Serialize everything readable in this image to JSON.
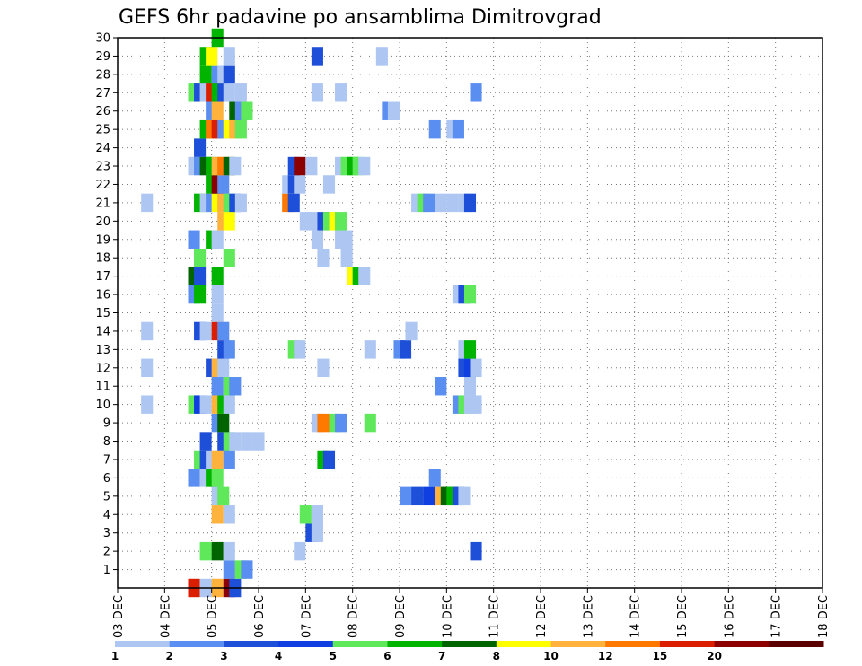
{
  "chart_data": {
    "type": "heatmap",
    "title": "GEFS 6hr padavine po ansamblima Dimitrovgrad",
    "x_tick_labels": [
      "03 DEC",
      "04 DEC",
      "05 DEC",
      "06 DEC",
      "07 DEC",
      "08 DEC",
      "09 DEC",
      "10 DEC",
      "11 DEC",
      "12 DEC",
      "13 DEC",
      "14 DEC",
      "15 DEC",
      "16 DEC",
      "17 DEC",
      "18 DEC"
    ],
    "y_tick_labels": [
      "1",
      "2",
      "3",
      "4",
      "5",
      "6",
      "7",
      "8",
      "9",
      "10",
      "11",
      "12",
      "13",
      "14",
      "15",
      "16",
      "17",
      "18",
      "19",
      "20",
      "21",
      "22",
      "23",
      "24",
      "25",
      "26",
      "27",
      "28",
      "29",
      "30"
    ],
    "xlim": [
      0,
      60
    ],
    "ylim": [
      0,
      30
    ],
    "grid": true,
    "legend": {
      "placement": "bottom",
      "labels": [
        "1",
        "2",
        "3",
        "4",
        "5",
        "6",
        "7",
        "8",
        "10",
        "12",
        "15",
        "20"
      ],
      "colors": [
        "#aec6f2",
        "#5a8ef0",
        "#1e4fd8",
        "#0f3fe0",
        "#5ee85a",
        "#00b400",
        "#006400",
        "#ffff00",
        "#ffb23c",
        "#ff7800",
        "#dc1e00",
        "#8c0000",
        "#5a0000"
      ]
    },
    "members": [
      {
        "member": 0,
        "cells": [
          [
            6,
            "c11"
          ],
          [
            7,
            "c1"
          ],
          [
            8,
            "c9"
          ],
          [
            9,
            "c12"
          ],
          [
            9.5,
            "c3"
          ]
        ]
      },
      {
        "member": 1,
        "cells": [
          [
            9,
            "c2"
          ],
          [
            10,
            "c5"
          ],
          [
            10.5,
            "c2"
          ]
        ]
      },
      {
        "member": 2,
        "cells": [
          [
            7,
            "c5"
          ],
          [
            8,
            "c7"
          ],
          [
            9,
            "c1"
          ],
          [
            15,
            "c1"
          ],
          [
            30,
            "c3"
          ]
        ]
      },
      {
        "member": 3,
        "cells": [
          [
            16,
            "c3"
          ],
          [
            16.5,
            "c1"
          ]
        ]
      },
      {
        "member": 4,
        "cells": [
          [
            8,
            "c9"
          ],
          [
            9,
            "c1"
          ],
          [
            15.5,
            "c5"
          ],
          [
            16.5,
            "c1"
          ]
        ]
      },
      {
        "member": 5,
        "cells": [
          [
            8,
            "c1"
          ],
          [
            8.5,
            "c5"
          ],
          [
            24,
            "c2"
          ],
          [
            25,
            "c3"
          ],
          [
            26,
            "c4"
          ],
          [
            27,
            "c9"
          ],
          [
            27.5,
            "c7"
          ],
          [
            28,
            "c6"
          ],
          [
            28.5,
            "c3"
          ],
          [
            29,
            "c1"
          ]
        ]
      },
      {
        "member": 6,
        "cells": [
          [
            6,
            "c2"
          ],
          [
            7,
            "c1"
          ],
          [
            7.5,
            "c6"
          ],
          [
            8,
            "c5"
          ],
          [
            26.5,
            "c2"
          ]
        ]
      },
      {
        "member": 7,
        "cells": [
          [
            6.5,
            "c5"
          ],
          [
            7,
            "c3"
          ],
          [
            7.5,
            "c1"
          ],
          [
            8,
            "c9"
          ],
          [
            9,
            "c2"
          ],
          [
            17,
            "c6"
          ],
          [
            17.5,
            "c3"
          ]
        ]
      },
      {
        "member": 8,
        "cells": [
          [
            7,
            "c3"
          ],
          [
            8.5,
            "c3"
          ],
          [
            9,
            "c5"
          ],
          [
            9.5,
            "c1"
          ],
          [
            10.5,
            "c1"
          ],
          [
            11.5,
            "c1"
          ]
        ]
      },
      {
        "member": 9,
        "cells": [
          [
            8,
            "c2"
          ],
          [
            8.5,
            "c7"
          ],
          [
            16.5,
            "c1"
          ],
          [
            17,
            "c10"
          ],
          [
            18,
            "c5"
          ],
          [
            18.5,
            "c2"
          ],
          [
            21,
            "c5"
          ]
        ]
      },
      {
        "member": 10,
        "cells": [
          [
            2,
            "c1"
          ],
          [
            6,
            "c5"
          ],
          [
            6.5,
            "c4"
          ],
          [
            7,
            "c1"
          ],
          [
            8,
            "c9"
          ],
          [
            8.5,
            "c6"
          ],
          [
            9,
            "c1"
          ],
          [
            28.5,
            "c2"
          ],
          [
            29,
            "c5"
          ],
          [
            29.5,
            "c1"
          ],
          [
            30,
            "c1"
          ]
        ]
      },
      {
        "member": 11,
        "cells": [
          [
            8,
            "c2"
          ],
          [
            9,
            "c5"
          ],
          [
            9.5,
            "c2"
          ],
          [
            27,
            "c2"
          ],
          [
            29.5,
            "c1"
          ]
        ]
      },
      {
        "member": 12,
        "cells": [
          [
            2,
            "c1"
          ],
          [
            7.5,
            "c3"
          ],
          [
            8,
            "c9"
          ],
          [
            8.5,
            "c1"
          ],
          [
            17,
            "c1"
          ],
          [
            29,
            "c3"
          ],
          [
            29.5,
            "c4"
          ],
          [
            30,
            "c1"
          ]
        ]
      },
      {
        "member": 13,
        "cells": [
          [
            8.5,
            "c3"
          ],
          [
            9,
            "c2"
          ],
          [
            14.5,
            "c5"
          ],
          [
            15,
            "c1"
          ],
          [
            21,
            "c1"
          ],
          [
            23.5,
            "c2"
          ],
          [
            24,
            "c3"
          ],
          [
            29,
            "c1"
          ],
          [
            29.5,
            "c6"
          ]
        ]
      },
      {
        "member": 14,
        "cells": [
          [
            2,
            "c1"
          ],
          [
            6.5,
            "c3"
          ],
          [
            7,
            "c1"
          ],
          [
            8,
            "c11"
          ],
          [
            8.5,
            "c2"
          ],
          [
            24.5,
            "c1"
          ]
        ]
      },
      {
        "member": 15,
        "cells": [
          [
            8,
            "c1"
          ]
        ]
      },
      {
        "member": 16,
        "cells": [
          [
            6,
            "c2"
          ],
          [
            6.5,
            "c6"
          ],
          [
            8,
            "c1"
          ],
          [
            28.5,
            "c1"
          ],
          [
            29,
            "c3"
          ],
          [
            29.5,
            "c5"
          ]
        ]
      },
      {
        "member": 17,
        "cells": [
          [
            6,
            "c7"
          ],
          [
            6.5,
            "c3"
          ],
          [
            8,
            "c6"
          ],
          [
            19.5,
            "c8"
          ],
          [
            20,
            "c6"
          ],
          [
            20.5,
            "c1"
          ]
        ]
      },
      {
        "member": 18,
        "cells": [
          [
            6.5,
            "c5"
          ],
          [
            9,
            "c5"
          ],
          [
            17,
            "c1"
          ],
          [
            19,
            "c1"
          ]
        ]
      },
      {
        "member": 19,
        "cells": [
          [
            6,
            "c2"
          ],
          [
            7.5,
            "c6"
          ],
          [
            8,
            "c1"
          ],
          [
            16.5,
            "c1"
          ],
          [
            18.5,
            "c1"
          ],
          [
            19,
            "c1"
          ]
        ]
      },
      {
        "member": 20,
        "cells": [
          [
            8.5,
            "c9"
          ],
          [
            9,
            "c8"
          ],
          [
            15.5,
            "c1"
          ],
          [
            16,
            "c1"
          ],
          [
            17,
            "c3"
          ],
          [
            17.5,
            "c5"
          ],
          [
            18,
            "c8"
          ],
          [
            18.5,
            "c5"
          ]
        ]
      },
      {
        "member": 21,
        "cells": [
          [
            2,
            "c1"
          ],
          [
            6.5,
            "c6"
          ],
          [
            7,
            "c1"
          ],
          [
            7.5,
            "c2"
          ],
          [
            8,
            "c8"
          ],
          [
            8.5,
            "c9"
          ],
          [
            9,
            "c5"
          ],
          [
            9.5,
            "c3"
          ],
          [
            10,
            "c1"
          ],
          [
            14,
            "c10"
          ],
          [
            14.5,
            "c3"
          ],
          [
            25,
            "c1"
          ],
          [
            25.5,
            "c5"
          ],
          [
            26,
            "c2"
          ],
          [
            27,
            "c1"
          ],
          [
            28,
            "c1"
          ],
          [
            29,
            "c1"
          ],
          [
            29.5,
            "c3"
          ]
        ]
      },
      {
        "member": 22,
        "cells": [
          [
            7.5,
            "c6"
          ],
          [
            8,
            "c12"
          ],
          [
            8.5,
            "c2"
          ],
          [
            14,
            "c1"
          ],
          [
            14.5,
            "c3"
          ],
          [
            15,
            "c1"
          ],
          [
            17.5,
            "c1"
          ]
        ]
      },
      {
        "member": 23,
        "cells": [
          [
            6,
            "c1"
          ],
          [
            6.5,
            "c2"
          ],
          [
            7,
            "c7"
          ],
          [
            7.5,
            "c6"
          ],
          [
            8,
            "c9"
          ],
          [
            8.5,
            "c10"
          ],
          [
            9,
            "c7"
          ],
          [
            9.5,
            "c1"
          ],
          [
            14.5,
            "c3"
          ],
          [
            15,
            "c12"
          ],
          [
            16,
            "c1"
          ],
          [
            18.5,
            "c1"
          ],
          [
            19,
            "c5"
          ],
          [
            19.5,
            "c6"
          ],
          [
            20,
            "c5"
          ],
          [
            20.5,
            "c1"
          ]
        ]
      },
      {
        "member": 24,
        "cells": [
          [
            6.5,
            "c3"
          ]
        ]
      },
      {
        "member": 25,
        "cells": [
          [
            7,
            "c6"
          ],
          [
            7.5,
            "c10"
          ],
          [
            8,
            "c11"
          ],
          [
            8.5,
            "c2"
          ],
          [
            9,
            "c8"
          ],
          [
            9.5,
            "c9"
          ],
          [
            10,
            "c5"
          ],
          [
            26.5,
            "c2"
          ],
          [
            28,
            "c1"
          ],
          [
            28.5,
            "c2"
          ]
        ]
      },
      {
        "member": 26,
        "cells": [
          [
            7.5,
            "c2"
          ],
          [
            8,
            "c9"
          ],
          [
            9.5,
            "c7"
          ],
          [
            10,
            "c2"
          ],
          [
            10.5,
            "c5"
          ],
          [
            22.5,
            "c2"
          ],
          [
            23,
            "c1"
          ]
        ]
      },
      {
        "member": 27,
        "cells": [
          [
            6,
            "c5"
          ],
          [
            6.5,
            "c3"
          ],
          [
            7,
            "c1"
          ],
          [
            7.5,
            "c11"
          ],
          [
            8,
            "c6"
          ],
          [
            8.5,
            "c3"
          ],
          [
            9,
            "c1"
          ],
          [
            10,
            "c1"
          ],
          [
            16.5,
            "c1"
          ],
          [
            18.5,
            "c1"
          ],
          [
            30,
            "c2"
          ]
        ]
      },
      {
        "member": 28,
        "cells": [
          [
            7,
            "c6"
          ],
          [
            8,
            "c2"
          ],
          [
            8.5,
            "c1"
          ],
          [
            9,
            "c3"
          ]
        ]
      },
      {
        "member": 29,
        "cells": [
          [
            7,
            "c6"
          ],
          [
            7.5,
            "c8"
          ],
          [
            9,
            "c1"
          ],
          [
            16.5,
            "c3"
          ],
          [
            22,
            "c1"
          ]
        ]
      },
      {
        "member": 30,
        "cells": [
          [
            8,
            "c6"
          ]
        ]
      }
    ]
  }
}
